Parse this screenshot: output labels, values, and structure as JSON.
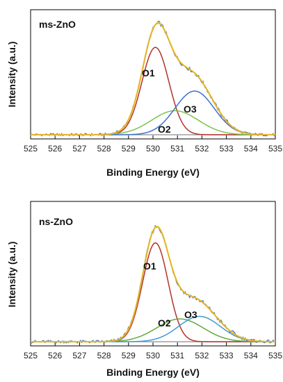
{
  "chart_data": [
    {
      "type": "line",
      "title": "ms-ZnO",
      "xlabel": "Binding Energy (eV)",
      "ylabel": "Intensity (a.u.)",
      "xlim": [
        525,
        535
      ],
      "ticks": [
        "525",
        "526",
        "527",
        "528",
        "529",
        "530",
        "531",
        "532",
        "533",
        "534",
        "535"
      ],
      "y_ticks_shown": false,
      "legend": "none",
      "components": [
        {
          "name": "O1",
          "center": 530.1,
          "amplitude": 0.8,
          "width": 0.55,
          "color": "#b5302a"
        },
        {
          "name": "O2",
          "center": 530.9,
          "amplitude": 0.22,
          "width": 0.95,
          "color": "#7cc34a"
        },
        {
          "name": "O3",
          "center": 531.7,
          "amplitude": 0.4,
          "width": 0.8,
          "color": "#3b6fd1"
        }
      ],
      "envelope_color": "#f0a032",
      "fit_color": "#d8d82a",
      "raw_color": "#3d6bbf",
      "baseline_color": "#8c8c8c",
      "y_range": [
        0,
        1.03
      ]
    },
    {
      "type": "line",
      "title": "ns-ZnO",
      "xlabel": "Binding Energy (eV)",
      "ylabel": "Intensity (a.u.)",
      "xlim": [
        525,
        535
      ],
      "ticks": [
        "525",
        "526",
        "527",
        "528",
        "529",
        "530",
        "531",
        "532",
        "533",
        "534",
        "535"
      ],
      "y_ticks_shown": false,
      "legend": "none",
      "components": [
        {
          "name": "O1",
          "center": 530.1,
          "amplitude": 0.78,
          "width": 0.52,
          "color": "#b5302a"
        },
        {
          "name": "O2",
          "center": 531.1,
          "amplitude": 0.18,
          "width": 0.95,
          "color": "#5faa3c"
        },
        {
          "name": "O3",
          "center": 531.9,
          "amplitude": 0.2,
          "width": 0.85,
          "color": "#3f9ad6"
        }
      ],
      "envelope_color": "#f0a032",
      "fit_color": "#d8d82a",
      "raw_color": "#3d6bbf",
      "baseline_color": "#8c8c8c",
      "y_range": [
        0,
        1.03
      ]
    }
  ]
}
